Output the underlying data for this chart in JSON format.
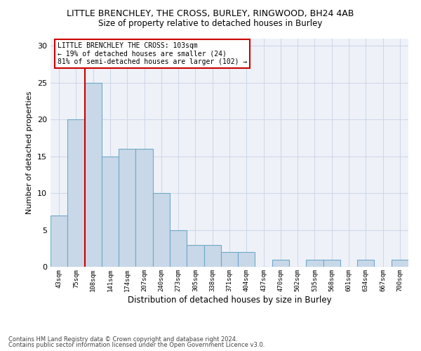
{
  "title1": "LITTLE BRENCHLEY, THE CROSS, BURLEY, RINGWOOD, BH24 4AB",
  "title2": "Size of property relative to detached houses in Burley",
  "xlabel": "Distribution of detached houses by size in Burley",
  "ylabel": "Number of detached properties",
  "bar_labels": [
    "43sqm",
    "75sqm",
    "108sqm",
    "141sqm",
    "174sqm",
    "207sqm",
    "240sqm",
    "273sqm",
    "305sqm",
    "338sqm",
    "371sqm",
    "404sqm",
    "437sqm",
    "470sqm",
    "502sqm",
    "535sqm",
    "568sqm",
    "601sqm",
    "634sqm",
    "667sqm",
    "700sqm"
  ],
  "bar_values": [
    7,
    20,
    25,
    15,
    16,
    16,
    10,
    5,
    3,
    3,
    2,
    2,
    0,
    1,
    0,
    1,
    1,
    0,
    1,
    0,
    1
  ],
  "bar_color": "#c8d8e8",
  "bar_edge_color": "#6fa8c8",
  "vline_x": 1.5,
  "vline_color": "#cc0000",
  "ylim": [
    0,
    31
  ],
  "yticks": [
    0,
    5,
    10,
    15,
    20,
    25,
    30
  ],
  "annotation_title": "LITTLE BRENCHLEY THE CROSS: 103sqm",
  "annotation_line1": "← 19% of detached houses are smaller (24)",
  "annotation_line2": "81% of semi-detached houses are larger (102) →",
  "annotation_box_color": "#ffffff",
  "annotation_box_edge": "#cc0000",
  "footer1": "Contains HM Land Registry data © Crown copyright and database right 2024.",
  "footer2": "Contains public sector information licensed under the Open Government Licence v3.0.",
  "grid_color": "#d0d8e8",
  "bg_color": "#eef2f8"
}
